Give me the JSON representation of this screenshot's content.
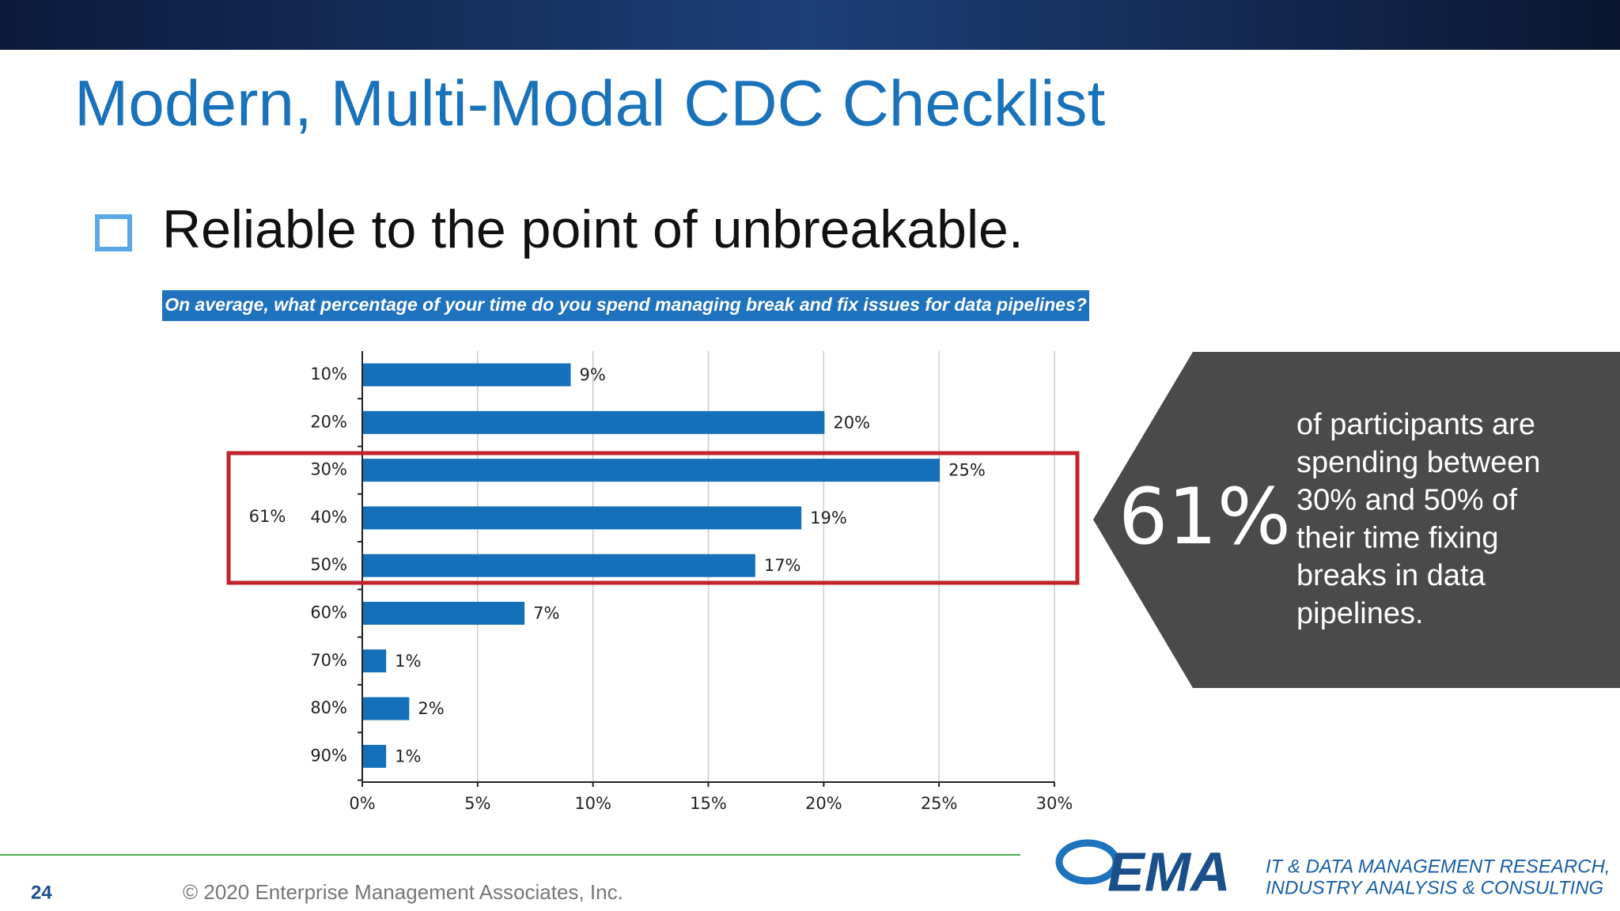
{
  "header": {
    "title": "Modern, Multi-Modal CDC Checklist",
    "bullet": "Reliable to the point of unbreakable."
  },
  "chart_data": {
    "type": "hbar",
    "title": "On average, what percentage of your time do you spend managing break and fix issues for data pipelines?",
    "categories": [
      "10%",
      "20%",
      "30%",
      "40%",
      "50%",
      "60%",
      "70%",
      "80%",
      "90%"
    ],
    "values": [
      9,
      20,
      25,
      19,
      17,
      7,
      1,
      2,
      1
    ],
    "value_labels": [
      "9%",
      "20%",
      "25%",
      "19%",
      "17%",
      "7%",
      "1%",
      "2%",
      "1%"
    ],
    "color": "#1470b8",
    "xlim": [
      0,
      30
    ],
    "xticks": [
      {
        "value": 0,
        "label": "0%"
      },
      {
        "value": 5,
        "label": "5%"
      },
      {
        "value": 10,
        "label": "10%"
      },
      {
        "value": 15,
        "label": "15%"
      },
      {
        "value": 20,
        "label": "20%"
      },
      {
        "value": 25,
        "label": "25%"
      },
      {
        "value": 30,
        "label": "30%"
      }
    ],
    "grid": true,
    "annotation": "61%"
  },
  "callout": {
    "figure": "61%",
    "lines": [
      "of participants are",
      "spending between",
      "30% and 50% of",
      "their time fixing",
      "breaks in data",
      "pipelines."
    ]
  },
  "footer": {
    "page": "24",
    "copyright": "© 2020 Enterprise Management Associates, Inc.",
    "logo": "EMA",
    "tagline": [
      "IT & DATA MANAGEMENT RESEARCH,",
      "INDUSTRY ANALYSIS & CONSULTING"
    ]
  }
}
